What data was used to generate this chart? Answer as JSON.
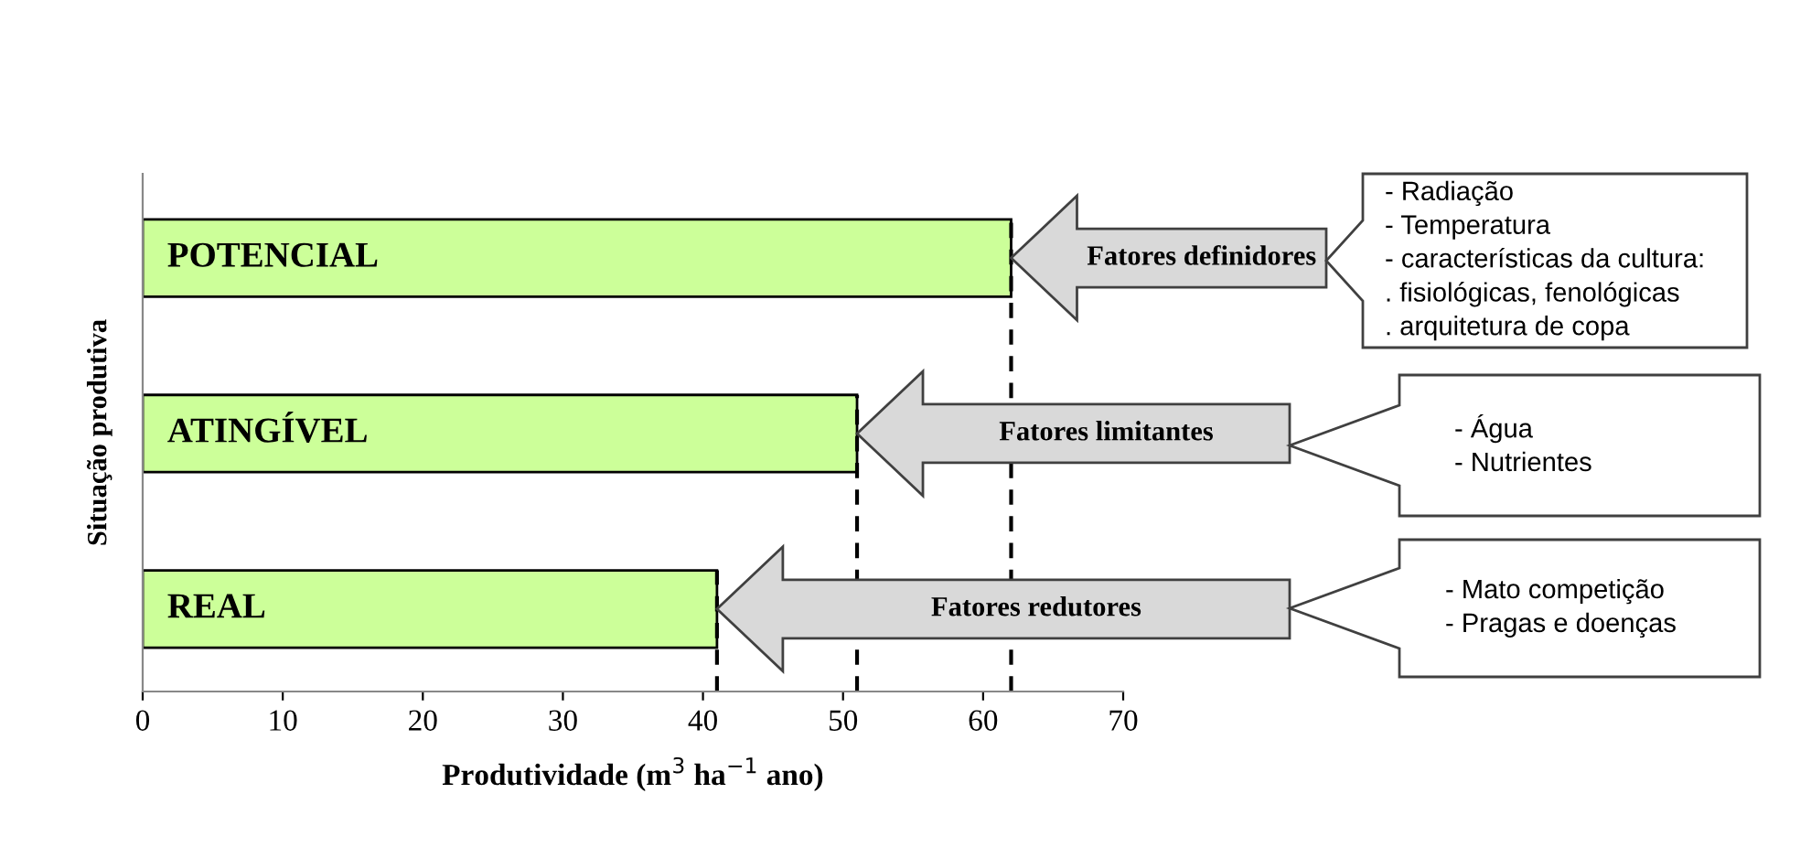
{
  "chart_data": {
    "type": "bar",
    "orientation": "horizontal",
    "xlabel": "Produtividade (m$^{3}$ ha$^{−1}$ ano)",
    "ylabel": "Situação produtiva",
    "categories": [
      "POTENCIAL",
      "ATINGÍVEL",
      "REAL"
    ],
    "values": [
      62,
      51,
      41
    ],
    "color": "#ccff99",
    "xlim": [
      0,
      70
    ],
    "xticks": [
      0,
      10,
      20,
      30,
      40,
      50,
      60,
      70
    ],
    "grid": false,
    "tick_labels": "x",
    "ref_lines": [
      {
        "axis": "x",
        "value": 62,
        "line_style": "dashed",
        "color": "#000000"
      },
      {
        "axis": "x",
        "value": 51,
        "line_style": "dashed",
        "color": "#000000"
      },
      {
        "axis": "x",
        "value": 41,
        "line_style": "dashed",
        "color": "#000000"
      }
    ],
    "annotations": [
      "Fatores definidores",
      "Fatores limitantes",
      "Fatores redutores",
      "- Radiação\n- Temperatura\n- características da cultura:\n. fisiológicas, fenológicas\n. arquitetura de copa",
      "- Água\n- Nutrientes",
      "- Mato competição\n- Pragas e doenças"
    ]
  }
}
